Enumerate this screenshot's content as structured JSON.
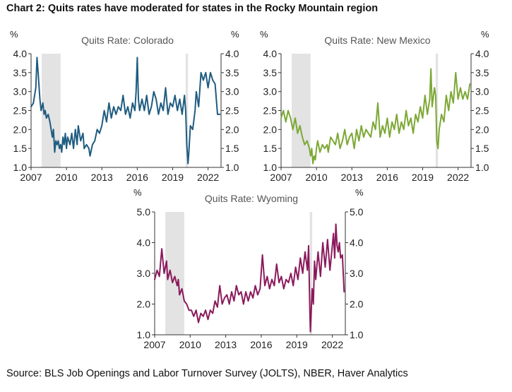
{
  "title": "Chart 2: Quits rates have moderated for states in the Rocky Mountain region",
  "source": "Source: BLS Job Openings and Labor Turnover Survey (JOLTS), NBER, Haver Analytics",
  "colors": {
    "background": "#ffffff",
    "recession_shading": "#e3e3e3",
    "axis": "#333333"
  },
  "chart_data": [
    {
      "type": "line",
      "title": "Quits Rate: Colorado",
      "unit_label": "%",
      "xlim": [
        2007,
        2023.1
      ],
      "ylim": [
        1.0,
        4.0
      ],
      "xticks": [
        2007,
        2010,
        2013,
        2016,
        2019,
        2022
      ],
      "yticks": [
        "1.0",
        "1.5",
        "2.0",
        "2.5",
        "3.0",
        "3.5",
        "4.0"
      ],
      "dual_y_axis": true,
      "grid": false,
      "color": "#1f5c80",
      "recessions": [
        [
          2007.9,
          2009.5
        ],
        [
          2020.1,
          2020.3
        ]
      ],
      "series": [
        {
          "x": [
            2007.0,
            2007.2,
            2007.4,
            2007.5,
            2007.6,
            2007.75,
            2007.85,
            2008.0,
            2008.1,
            2008.2,
            2008.3,
            2008.45,
            2008.6,
            2008.7,
            2008.8,
            2008.9,
            2009.0,
            2009.1,
            2009.2,
            2009.3,
            2009.4,
            2009.5,
            2009.6,
            2009.7,
            2009.8,
            2009.9,
            2010.0,
            2010.1,
            2010.2,
            2010.3,
            2010.45,
            2010.6,
            2010.75,
            2010.9,
            2011.0,
            2011.2,
            2011.4,
            2011.5,
            2011.7,
            2011.9,
            2012.0,
            2012.2,
            2012.4,
            2012.6,
            2012.8,
            2013.0,
            2013.2,
            2013.4,
            2013.6,
            2013.8,
            2014.0,
            2014.2,
            2014.4,
            2014.6,
            2014.8,
            2015.0,
            2015.2,
            2015.4,
            2015.6,
            2015.8,
            2015.9,
            2016.0,
            2016.1,
            2016.2,
            2016.4,
            2016.6,
            2016.8,
            2017.0,
            2017.2,
            2017.4,
            2017.6,
            2017.8,
            2018.0,
            2018.2,
            2018.4,
            2018.6,
            2018.8,
            2019.0,
            2019.2,
            2019.4,
            2019.6,
            2019.8,
            2020.0,
            2020.1,
            2020.2,
            2020.3,
            2020.35,
            2020.5,
            2020.7,
            2020.9,
            2021.0,
            2021.2,
            2021.4,
            2021.6,
            2021.8,
            2022.0,
            2022.2,
            2022.4,
            2022.6,
            2022.8,
            2023.0
          ],
          "y": [
            2.6,
            2.7,
            3.1,
            3.9,
            3.5,
            2.8,
            2.5,
            2.7,
            2.4,
            2.5,
            2.3,
            2.4,
            2.2,
            2.0,
            1.8,
            2.0,
            1.4,
            1.7,
            1.6,
            1.7,
            1.5,
            1.6,
            1.4,
            1.8,
            1.6,
            1.9,
            1.5,
            1.8,
            1.7,
            1.6,
            1.9,
            1.5,
            2.0,
            1.6,
            2.1,
            1.7,
            1.9,
            1.5,
            1.6,
            1.5,
            1.3,
            1.6,
            1.7,
            2.0,
            1.9,
            2.1,
            2.5,
            2.2,
            2.7,
            2.3,
            2.6,
            2.4,
            2.6,
            2.5,
            2.9,
            2.4,
            2.6,
            2.3,
            2.7,
            2.5,
            3.0,
            3.9,
            2.8,
            2.5,
            2.8,
            2.5,
            2.9,
            2.4,
            2.6,
            3.0,
            2.8,
            2.4,
            2.7,
            2.5,
            3.1,
            2.4,
            2.7,
            2.6,
            2.9,
            2.5,
            2.8,
            2.4,
            2.9,
            2.5,
            1.6,
            1.1,
            1.3,
            2.1,
            2.0,
            2.5,
            3.0,
            2.6,
            3.5,
            3.3,
            3.5,
            3.1,
            3.5,
            3.3,
            3.2,
            2.4,
            2.4
          ]
        }
      ]
    },
    {
      "type": "line",
      "title": "Quits Rate: New Mexico",
      "unit_label": "%",
      "xlim": [
        2007,
        2023.1
      ],
      "ylim": [
        1.0,
        4.0
      ],
      "xticks": [
        2007,
        2010,
        2013,
        2016,
        2019,
        2022
      ],
      "yticks": [
        "1.0",
        "1.5",
        "2.0",
        "2.5",
        "3.0",
        "3.5",
        "4.0"
      ],
      "dual_y_axis": true,
      "grid": false,
      "color": "#7ca835",
      "recessions": [
        [
          2007.9,
          2009.5
        ],
        [
          2020.1,
          2020.3
        ]
      ],
      "series": [
        {
          "x": [
            2007.0,
            2007.2,
            2007.4,
            2007.6,
            2007.8,
            2008.0,
            2008.2,
            2008.4,
            2008.6,
            2008.8,
            2009.0,
            2009.2,
            2009.4,
            2009.5,
            2009.6,
            2009.7,
            2009.8,
            2009.9,
            2010.0,
            2010.1,
            2010.3,
            2010.5,
            2010.7,
            2010.9,
            2011.0,
            2011.2,
            2011.4,
            2011.6,
            2011.8,
            2012.0,
            2012.2,
            2012.4,
            2012.6,
            2012.8,
            2013.0,
            2013.2,
            2013.4,
            2013.6,
            2013.8,
            2014.0,
            2014.2,
            2014.4,
            2014.6,
            2014.8,
            2015.0,
            2015.2,
            2015.4,
            2015.6,
            2015.8,
            2016.0,
            2016.2,
            2016.4,
            2016.6,
            2016.8,
            2017.0,
            2017.2,
            2017.4,
            2017.6,
            2017.8,
            2018.0,
            2018.2,
            2018.4,
            2018.6,
            2018.8,
            2019.0,
            2019.2,
            2019.4,
            2019.6,
            2019.7,
            2019.8,
            2020.0,
            2020.1,
            2020.2,
            2020.3,
            2020.4,
            2020.6,
            2020.8,
            2021.0,
            2021.2,
            2021.4,
            2021.6,
            2021.8,
            2022.0,
            2022.2,
            2022.4,
            2022.6,
            2022.8,
            2023.0
          ],
          "y": [
            2.3,
            2.5,
            2.2,
            2.5,
            2.3,
            2.0,
            2.3,
            1.9,
            2.1,
            1.8,
            1.6,
            1.7,
            1.5,
            1.3,
            1.5,
            1.1,
            1.3,
            1.2,
            1.5,
            1.7,
            1.4,
            1.6,
            1.5,
            1.6,
            1.4,
            1.8,
            1.7,
            1.6,
            1.9,
            1.5,
            1.7,
            2.0,
            1.6,
            1.8,
            1.9,
            1.5,
            2.0,
            1.7,
            2.1,
            1.8,
            2.0,
            1.9,
            1.8,
            2.2,
            2.0,
            2.7,
            1.8,
            2.1,
            1.9,
            2.3,
            1.8,
            2.2,
            2.0,
            2.4,
            1.9,
            2.2,
            2.0,
            2.5,
            2.1,
            2.3,
            1.9,
            2.4,
            2.2,
            2.6,
            2.3,
            2.9,
            2.4,
            2.8,
            3.6,
            2.6,
            3.1,
            2.9,
            1.7,
            1.5,
            2.0,
            2.4,
            2.2,
            2.9,
            2.5,
            3.0,
            2.7,
            3.5,
            2.8,
            3.1,
            2.8,
            3.0,
            2.8,
            3.2
          ]
        }
      ]
    },
    {
      "type": "line",
      "title": "Quits Rate: Wyoming",
      "unit_label": "%",
      "xlim": [
        2007,
        2023.1
      ],
      "ylim": [
        1.0,
        5.0
      ],
      "xticks": [
        2007,
        2010,
        2013,
        2016,
        2019,
        2022
      ],
      "yticks": [
        "1.0",
        "2.0",
        "3.0",
        "4.0",
        "5.0"
      ],
      "dual_y_axis": true,
      "grid": false,
      "color": "#8b1a5c",
      "recessions": [
        [
          2007.9,
          2009.5
        ],
        [
          2020.1,
          2020.3
        ]
      ],
      "series": [
        {
          "x": [
            2007.0,
            2007.2,
            2007.4,
            2007.6,
            2007.8,
            2008.0,
            2008.1,
            2008.3,
            2008.5,
            2008.7,
            2008.9,
            2009.0,
            2009.1,
            2009.3,
            2009.5,
            2009.7,
            2009.9,
            2010.1,
            2010.3,
            2010.5,
            2010.7,
            2010.9,
            2011.1,
            2011.3,
            2011.5,
            2011.7,
            2011.9,
            2012.1,
            2012.3,
            2012.5,
            2012.7,
            2012.9,
            2013.1,
            2013.3,
            2013.5,
            2013.7,
            2013.9,
            2014.1,
            2014.3,
            2014.5,
            2014.7,
            2014.9,
            2015.1,
            2015.3,
            2015.5,
            2015.7,
            2015.9,
            2016.1,
            2016.3,
            2016.5,
            2016.7,
            2016.9,
            2017.1,
            2017.3,
            2017.5,
            2017.7,
            2017.9,
            2018.1,
            2018.3,
            2018.5,
            2018.7,
            2018.9,
            2019.1,
            2019.3,
            2019.5,
            2019.7,
            2019.9,
            2020.0,
            2020.1,
            2020.15,
            2020.3,
            2020.4,
            2020.5,
            2020.6,
            2020.8,
            2021.0,
            2021.2,
            2021.4,
            2021.6,
            2021.8,
            2022.0,
            2022.1,
            2022.2,
            2022.3,
            2022.4,
            2022.5,
            2022.6,
            2022.7,
            2022.85,
            2023.0
          ],
          "y": [
            2.8,
            3.1,
            2.9,
            3.8,
            3.0,
            3.4,
            2.8,
            3.1,
            2.7,
            2.9,
            2.6,
            2.8,
            2.3,
            2.5,
            2.1,
            2.0,
            1.8,
            1.8,
            1.6,
            1.8,
            1.4,
            1.7,
            1.6,
            1.8,
            1.5,
            1.8,
            1.7,
            2.1,
            1.9,
            2.6,
            2.0,
            2.2,
            2.3,
            2.0,
            2.4,
            2.1,
            2.6,
            2.3,
            2.4,
            2.0,
            2.4,
            2.1,
            2.4,
            2.2,
            2.6,
            2.3,
            2.5,
            3.6,
            2.6,
            2.9,
            2.5,
            2.8,
            2.6,
            3.3,
            2.7,
            2.9,
            2.5,
            2.8,
            2.7,
            3.0,
            2.6,
            3.2,
            2.8,
            3.5,
            3.0,
            3.7,
            3.1,
            3.9,
            1.8,
            1.1,
            2.5,
            2.0,
            3.4,
            2.8,
            3.7,
            2.9,
            4.0,
            3.2,
            4.1,
            3.1,
            3.9,
            4.3,
            3.5,
            4.6,
            3.9,
            3.7,
            4.0,
            3.5,
            3.6,
            2.4
          ]
        }
      ]
    }
  ]
}
